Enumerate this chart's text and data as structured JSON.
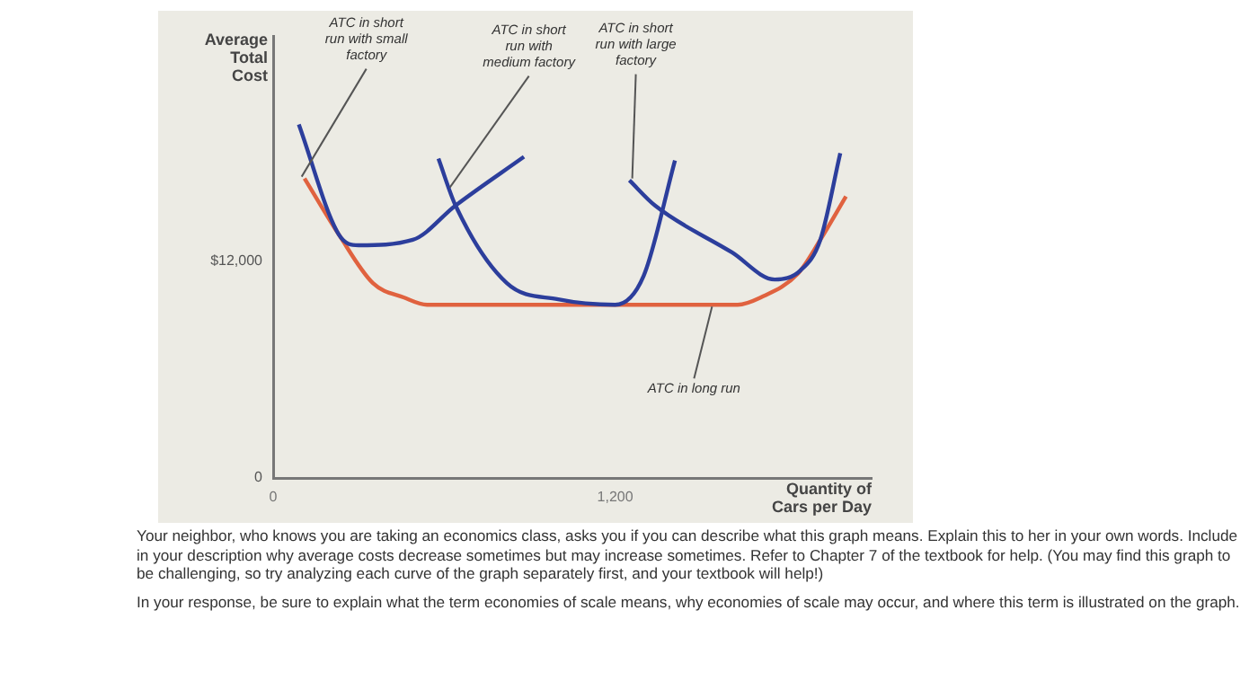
{
  "chart_data": {
    "type": "line",
    "xlabel": "Quantity of Cars per Day",
    "ylabel": "Average Total Cost",
    "xlim": [
      0,
      2100
    ],
    "ylim": [
      0,
      24500
    ],
    "xticks": [
      0,
      {
        "value": 1200,
        "label": "1,200"
      }
    ],
    "yticks": [
      0,
      {
        "value": 12000,
        "label": "$12,000"
      }
    ],
    "grid": false,
    "legend": false,
    "marker": "none",
    "line_style": "solid",
    "series": [
      {
        "color": "#2c3e9c",
        "x": [
          90,
          230,
          300,
          490,
          640,
          880
        ],
        "values": [
          19600,
          13500,
          12900,
          13200,
          15100,
          17800
        ]
      },
      {
        "color": "#2c3e9c",
        "x": [
          580,
          640,
          820,
          1000,
          1200,
          1300,
          1410
        ],
        "values": [
          17700,
          15100,
          10800,
          9900,
          9600,
          11200,
          17600
        ]
      },
      {
        "color": "#2c3e9c",
        "x": [
          1250,
          1340,
          1610,
          1760,
          1850,
          1920,
          1990
        ],
        "values": [
          16500,
          15100,
          12500,
          11000,
          11500,
          13200,
          18000
        ]
      },
      {
        "color": "#e0623f",
        "x": [
          110,
          230,
          350,
          460,
          540,
          1630,
          1710,
          1840,
          1920,
          2010
        ],
        "values": [
          16600,
          13500,
          10800,
          10000,
          9600,
          9600,
          10000,
          11300,
          13200,
          15600
        ]
      }
    ],
    "annotations": [
      {
        "text": "ATC in short run with small factory",
        "x": 100,
        "y": 16700
      },
      {
        "text": "ATC in short run with medium factory",
        "x": 620,
        "y": 16100
      },
      {
        "text": "ATC in short run with large factory",
        "x": 1260,
        "y": 16600
      },
      {
        "text": "ATC in long run",
        "x": 1540,
        "y": 9500
      },
      "Your neighbor, who knows you are taking an economics class, asks you if you can describe what this graph means.  Explain this to her in your own words.  Include in your description why average costs decrease sometimes but may increase sometimes.  Refer to Chapter 7 of the textbook for help.  (You may find this graph to be challenging, so try analyzing each curve of the graph separately first, and your textbook will help!)",
      "In your response, be sure to explain what the term economies of scale means, why economies of scale may occur, and where this term is illustrated on the graph."
    ]
  }
}
